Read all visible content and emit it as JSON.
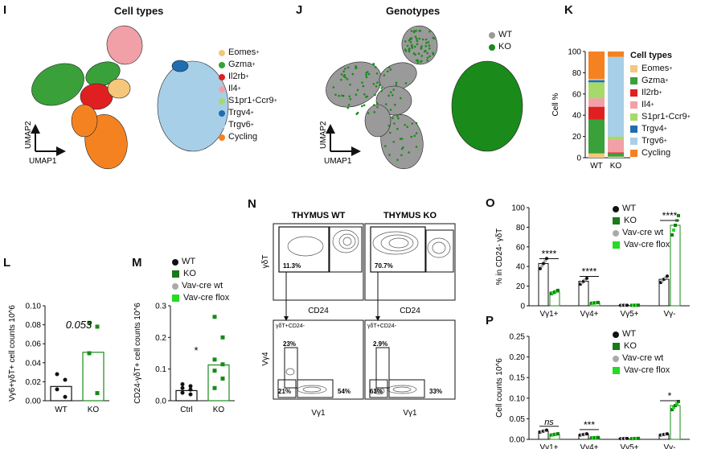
{
  "panels": {
    "I": "I",
    "J": "J",
    "K": "K",
    "L": "L",
    "M": "M",
    "N": "N",
    "O": "O",
    "P": "P"
  },
  "titles": {
    "cell_types": "Cell types",
    "genotypes": "Genotypes"
  },
  "umap": {
    "x": "UMAP1",
    "y": "UMAP2"
  },
  "colors": {
    "eomes": "#f5c77a",
    "gzma": "#3aa03a",
    "il2rb": "#e02020",
    "il4": "#f2a0a8",
    "s1pr1": "#a6d96a",
    "trgv4": "#1f6fb0",
    "trgv6": "#a8cfe8",
    "cycling": "#f58220",
    "wt_grey": "#9a9a9a",
    "ko_green": "#1a8a1a",
    "wt_black": "#111111",
    "ko_dark": "#1a7a1a",
    "vav_wt": "#aaaaaa",
    "vav_flox": "#22dd22"
  },
  "cell_types_legend": [
    {
      "label": "Eomes",
      "sup": "+",
      "color": "#f5c77a"
    },
    {
      "label": "Gzma",
      "sup": "+",
      "color": "#3aa03a"
    },
    {
      "label": "Il2rb",
      "sup": "+",
      "color": "#e02020"
    },
    {
      "label": "Il4",
      "sup": "+",
      "color": "#f2a0a8"
    },
    {
      "label": "S1pr1",
      "sup": "+",
      "label2": "Ccr9",
      "sup2": "+",
      "color": "#a6d96a"
    },
    {
      "label": "Trgv4",
      "sup": "+",
      "color": "#1f6fb0"
    },
    {
      "label": "Trgv6",
      "sup": "+",
      "color": "#a8cfe8"
    },
    {
      "label": "Cycling",
      "sup": "",
      "color": "#f58220"
    }
  ],
  "genotype_legend": [
    {
      "label": "WT",
      "color": "#9a9a9a"
    },
    {
      "label": "KO",
      "color": "#1a8a1a"
    }
  ],
  "four_group_legend": [
    {
      "label": "WT",
      "color": "#111111",
      "shape": "circle"
    },
    {
      "label": "KO",
      "color": "#1a7a1a",
      "shape": "square"
    },
    {
      "label": "Vav-cre wt",
      "color": "#aaaaaa",
      "shape": "circle"
    },
    {
      "label": "Vav-cre flox",
      "color": "#22dd22",
      "shape": "square"
    }
  ],
  "chart_data": [
    {
      "panel": "K",
      "type": "bar",
      "stacked": true,
      "categories": [
        "WT",
        "KO"
      ],
      "ylabel": "Cell %",
      "ylim": [
        0,
        100
      ],
      "yticks": [
        "0",
        "20",
        "40",
        "60",
        "80",
        "100"
      ],
      "legend_title": "Cell types",
      "series": [
        {
          "name": "Eomes+",
          "values": [
            4,
            1
          ]
        },
        {
          "name": "Gzma+",
          "values": [
            32,
            3
          ]
        },
        {
          "name": "Il2rb+",
          "values": [
            12,
            1
          ]
        },
        {
          "name": "Il4+",
          "values": [
            8,
            12
          ]
        },
        {
          "name": "S1pr1+Ccr9+",
          "values": [
            15,
            3
          ]
        },
        {
          "name": "Trgv4+",
          "values": [
            2,
            0
          ]
        },
        {
          "name": "Trgv6+",
          "values": [
            1,
            75
          ]
        },
        {
          "name": "Cycling",
          "values": [
            26,
            5
          ]
        }
      ]
    },
    {
      "panel": "L",
      "type": "bar",
      "categories": [
        "WT",
        "KO"
      ],
      "ylabel": "Vγ6+γδT+ cell counts 10^6",
      "ylim": [
        0,
        0.1
      ],
      "yticks": [
        "0.00",
        "0.02",
        "0.04",
        "0.06",
        "0.08",
        "0.10"
      ],
      "values": [
        0.015,
        0.051
      ],
      "annotation": "0.053",
      "points": [
        [
          0.028,
          0.022,
          0.012,
          0.004
        ],
        [
          0.082,
          0.078,
          0.05,
          0.008
        ]
      ]
    },
    {
      "panel": "M",
      "type": "bar",
      "categories": [
        "Ctrl",
        "KO"
      ],
      "ylabel": "CD24-γδT+ cell counts 10^6",
      "ylim": [
        0,
        0.3
      ],
      "yticks": [
        "0.0",
        "0.1",
        "0.2",
        "0.3"
      ],
      "values": [
        0.032,
        0.113
      ],
      "annotation": "*",
      "points": [
        [
          0.052,
          0.046,
          0.04,
          0.035,
          0.025,
          0.02
        ],
        [
          0.265,
          0.2,
          0.13,
          0.115,
          0.095,
          0.07,
          0.04
        ]
      ]
    },
    {
      "panel": "O",
      "type": "bar",
      "categories": [
        "Vγ1+",
        "Vγ4+",
        "Vγ5+",
        "Vγ-"
      ],
      "ylabel": "% in CD24- γδT",
      "ylim": [
        0,
        100
      ],
      "yticks": [
        "0",
        "20",
        "40",
        "60",
        "80",
        "100"
      ],
      "series": [
        {
          "name": "WT",
          "values": [
            43,
            25,
            0.5,
            27
          ]
        },
        {
          "name": "KO",
          "values": [
            14,
            3,
            0.5,
            82
          ]
        }
      ],
      "significance": [
        "****",
        "****",
        "",
        "****"
      ]
    },
    {
      "panel": "P",
      "type": "bar",
      "categories": [
        "Vγ1+",
        "Vγ4+",
        "Vγ5+",
        "Vγ-"
      ],
      "ylabel": "Cell counts 10^6",
      "ylim": [
        0,
        0.25
      ],
      "yticks": [
        "0.00",
        "0.05",
        "0.10",
        "0.15",
        "0.20",
        "0.25"
      ],
      "series": [
        {
          "name": "WT",
          "values": [
            0.02,
            0.012,
            0.002,
            0.012
          ]
        },
        {
          "name": "KO",
          "values": [
            0.012,
            0.004,
            0.002,
            0.082
          ]
        }
      ],
      "significance": [
        "ns",
        "***",
        "",
        "*"
      ]
    }
  ],
  "flow": {
    "thymus_wt": "THYMUS WT",
    "thymus_ko": "THYMUS KO",
    "y_top": "γδT",
    "x_top": "CD24",
    "y_bot": "Vγ4",
    "x_bot": "Vγ1",
    "gate_sub": "γδT+CD24-",
    "wt_top_pct": "11.3%",
    "ko_top_pct": "70.7%",
    "wt_vg4": "23%",
    "wt_dn": "21%",
    "wt_vg1": "54%",
    "ko_vg4": "2.9%",
    "ko_dn": "63%",
    "ko_vg1": "33%"
  }
}
